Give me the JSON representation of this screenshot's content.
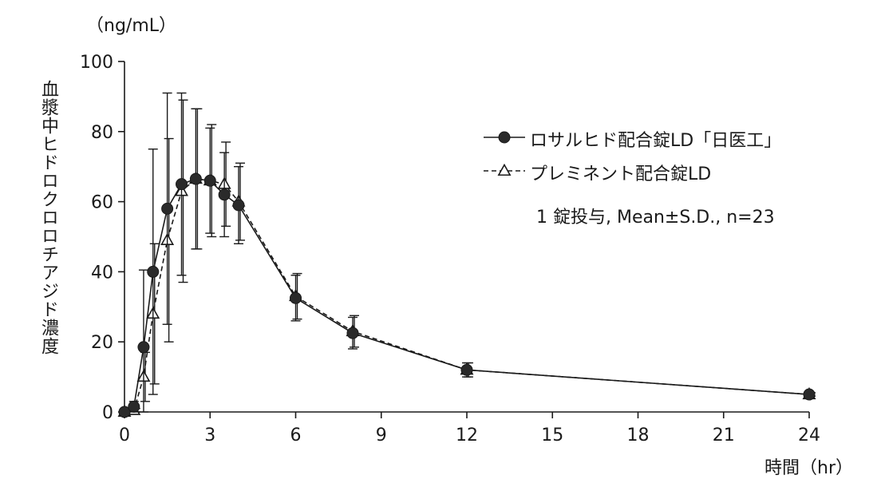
{
  "chart_data": {
    "type": "line",
    "ylabel": "血漿中ヒドロクロロチアジド濃度",
    "yunit": "（ng/mL）",
    "xlabel": "時間（hr）",
    "xlim": [
      0,
      24
    ],
    "ylim": [
      0,
      100
    ],
    "xticks": [
      0,
      3,
      6,
      9,
      12,
      15,
      18,
      21,
      24
    ],
    "yticks": [
      0,
      20,
      40,
      60,
      80,
      100
    ],
    "grid": false,
    "legend_position": "top-right",
    "series": [
      {
        "name": "ロサルヒド配合錠LD「日医工」",
        "marker": "filled-circle",
        "line": "solid",
        "x": [
          0,
          0.33,
          0.67,
          1,
          1.5,
          2,
          2.5,
          3,
          3.5,
          4,
          6,
          8,
          12,
          24
        ],
        "y": [
          0,
          1.5,
          18.5,
          40,
          58,
          65,
          66.5,
          66,
          62,
          59,
          32.5,
          22.5,
          12,
          5
        ],
        "err": [
          0,
          1.5,
          22,
          35,
          33,
          26,
          20,
          15,
          12,
          11,
          6.5,
          4.5,
          2,
          0.5
        ]
      },
      {
        "name": "プレミネント配合錠LD",
        "marker": "open-triangle",
        "line": "dashed",
        "x": [
          0,
          0.33,
          0.67,
          1,
          1.5,
          2,
          2.5,
          3,
          3.5,
          4,
          6,
          8,
          12,
          24
        ],
        "y": [
          0,
          0.5,
          10,
          28,
          49,
          63,
          66.5,
          66,
          65,
          60,
          33,
          23,
          12,
          5
        ],
        "err": [
          0,
          0.5,
          7,
          20,
          29,
          26,
          20,
          16,
          12,
          11,
          6.5,
          4.5,
          2,
          0.5
        ]
      }
    ],
    "annotation": "1 錠投与, Mean±S.D., n=23"
  }
}
